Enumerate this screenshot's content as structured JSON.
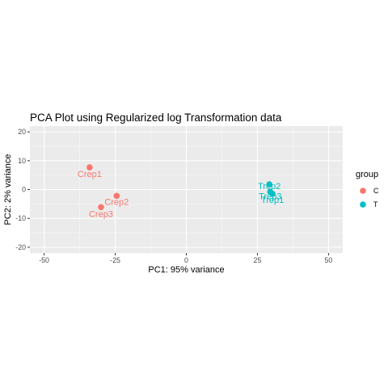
{
  "chart_data": {
    "type": "scatter",
    "title": "PCA Plot using Regularized log  Transformation data",
    "xlabel": "PC1: 95% variance",
    "ylabel": "PC2: 2% variance",
    "xlim": [
      -55,
      55
    ],
    "ylim": [
      -22,
      22
    ],
    "x_ticks": [
      -50,
      -25,
      0,
      25,
      50
    ],
    "y_ticks": [
      -20,
      -10,
      0,
      10,
      20
    ],
    "grid": true,
    "legend": {
      "title": "group",
      "position": "right",
      "entries": [
        {
          "label": "C",
          "color": "#F8766D"
        },
        {
          "label": "T",
          "color": "#00BFC4"
        }
      ]
    },
    "points": [
      {
        "name": "Crep1",
        "group": "C",
        "x": -34,
        "y": 7.7
      },
      {
        "name": "Crep2",
        "group": "C",
        "x": -24.5,
        "y": -2.2
      },
      {
        "name": "Crep3",
        "group": "C",
        "x": -30,
        "y": -6.1
      },
      {
        "name": "Trep2",
        "group": "T",
        "x": 29.2,
        "y": 1.8
      },
      {
        "name": "Trep3",
        "group": "T",
        "x": 29.5,
        "y": -0.8
      },
      {
        "name": "Trep1",
        "group": "T",
        "x": 30.3,
        "y": -1.5
      }
    ]
  }
}
